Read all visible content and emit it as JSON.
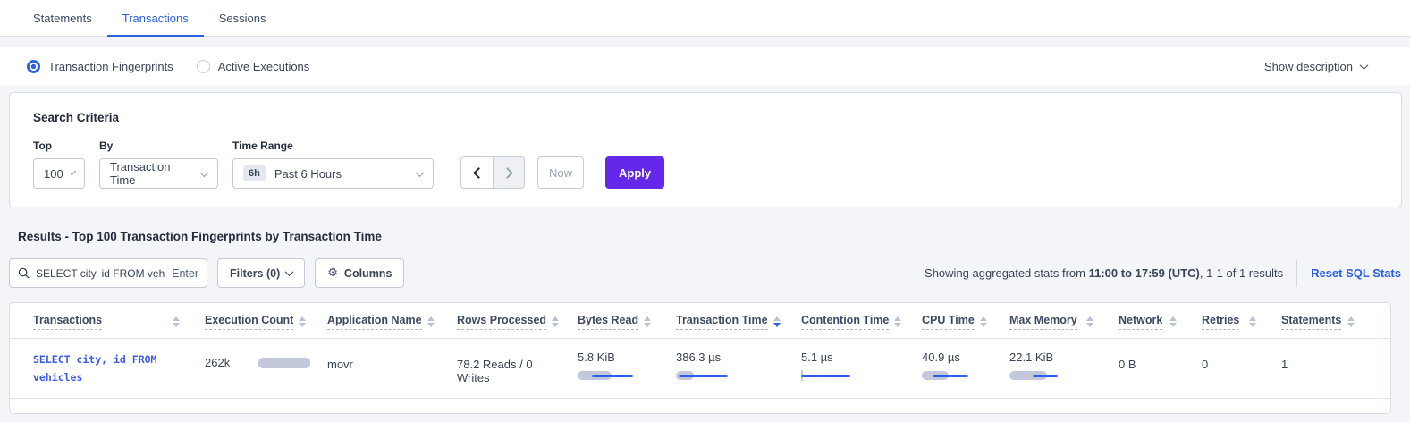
{
  "tabs": [
    {
      "label": "Statements",
      "active": false
    },
    {
      "label": "Transactions",
      "active": true
    },
    {
      "label": "Sessions",
      "active": false
    }
  ],
  "view_toggle": {
    "options": [
      {
        "label": "Transaction Fingerprints",
        "selected": true
      },
      {
        "label": "Active Executions",
        "selected": false
      }
    ],
    "show_description_label": "Show description"
  },
  "search_criteria": {
    "title": "Search Criteria",
    "top": {
      "label": "Top",
      "value": "100"
    },
    "by": {
      "label": "By",
      "value": "Transaction Time"
    },
    "time_range": {
      "label": "Time Range",
      "badge": "6h",
      "value": "Past 6 Hours"
    },
    "now_label": "Now",
    "apply_label": "Apply"
  },
  "results": {
    "heading": "Results - Top 100 Transaction Fingerprints by Transaction Time",
    "search": {
      "value": "SELECT city, id FROM vehicles W",
      "hint": "Enter"
    },
    "filters_label": "Filters (0)",
    "columns_label": "Columns",
    "stats_prefix": "Showing aggregated stats from ",
    "stats_bold": "11:00 to 17:59 (UTC)",
    "stats_suffix": ", 1-1 of 1 results",
    "reset_label": "Reset SQL Stats"
  },
  "table": {
    "columns": [
      {
        "label": "Transactions",
        "sort": "none"
      },
      {
        "label": "Execution Count",
        "sort": "none"
      },
      {
        "label": "Application Name",
        "sort": "none"
      },
      {
        "label": "Rows Processed",
        "sort": "none"
      },
      {
        "label": "Bytes Read",
        "sort": "none"
      },
      {
        "label": "Transaction Time",
        "sort": "desc"
      },
      {
        "label": "Contention Time",
        "sort": "none"
      },
      {
        "label": "CPU Time",
        "sort": "none"
      },
      {
        "label": "Max Memory",
        "sort": "none"
      },
      {
        "label": "Network",
        "sort": "none"
      },
      {
        "label": "Retries",
        "sort": "none"
      },
      {
        "label": "Statements",
        "sort": "none"
      }
    ],
    "row": {
      "transactions": "SELECT city, id FROM vehicles",
      "execution_count": {
        "value": "262k",
        "bar": {
          "gray": [
            0,
            58
          ]
        }
      },
      "application_name": "movr",
      "rows_processed": "78.2 Reads / 0 Writes",
      "bytes_read": {
        "value": "5.8 KiB",
        "bar": {
          "gray": [
            0,
            38
          ],
          "blue": [
            16,
            46
          ]
        }
      },
      "transaction_time": {
        "value": "386.3 µs",
        "bar": {
          "gray": [
            0,
            20
          ],
          "blue": [
            3,
            55
          ]
        }
      },
      "contention_time": {
        "value": "5.1 µs",
        "bar": {
          "gray": [
            0,
            2
          ],
          "blue": [
            0,
            55
          ]
        }
      },
      "cpu_time": {
        "value": "40.9 µs",
        "bar": {
          "gray": [
            0,
            30
          ],
          "blue": [
            12,
            40
          ]
        }
      },
      "max_memory": {
        "value": "22.1 KiB",
        "bar": {
          "gray": [
            0,
            42
          ],
          "blue": [
            26,
            28
          ]
        }
      },
      "network": "0 B",
      "retries": "0",
      "statements": "1"
    }
  },
  "colors": {
    "accent_blue": "#2a5fe0",
    "apply_purple": "#6428eb",
    "bar_gray": "#c3c9da",
    "bar_blue": "#2c5ef0",
    "page_background": "#f4f5f9"
  }
}
